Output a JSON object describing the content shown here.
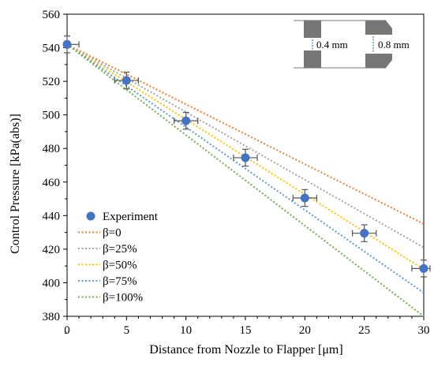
{
  "chart_data": {
    "type": "scatter",
    "title": "",
    "xlabel": "Distance from Nozzle to Flapper [μm]",
    "ylabel": "Control Pressure [kPa(abs)]",
    "xlim": [
      0,
      30
    ],
    "ylim": [
      380,
      560
    ],
    "xticks": [
      0,
      5,
      10,
      15,
      20,
      25,
      30
    ],
    "yticks": [
      380,
      400,
      420,
      440,
      460,
      480,
      500,
      520,
      540,
      560
    ],
    "grid": false,
    "legend_position": "bottom-left",
    "experiment": {
      "name": "Experiment",
      "color": "#4472C4",
      "x": [
        0,
        5,
        10,
        15,
        20,
        25,
        30
      ],
      "y": [
        542,
        520.5,
        496.5,
        474.5,
        450.5,
        429.5,
        408.5
      ],
      "x_error": 1.0,
      "y_error": 5
    },
    "series": [
      {
        "name": "β=0",
        "color": "#ED7D31",
        "x": [
          0,
          30
        ],
        "y": [
          542,
          435
        ]
      },
      {
        "name": "β=25%",
        "color": "#A5A5A5",
        "x": [
          0,
          30
        ],
        "y": [
          542,
          421
        ]
      },
      {
        "name": "β=50%",
        "color": "#FFC000",
        "x": [
          0,
          30
        ],
        "y": [
          542,
          408
        ]
      },
      {
        "name": "β=75%",
        "color": "#5B9BD5",
        "x": [
          0,
          30
        ],
        "y": [
          542,
          394
        ]
      },
      {
        "name": "β=100%",
        "color": "#70AD47",
        "x": [
          0,
          30
        ],
        "y": [
          542,
          380
        ]
      }
    ],
    "annotations": {
      "inset_label_left": "0.4 mm",
      "inset_label_right": "0.8 mm"
    }
  }
}
